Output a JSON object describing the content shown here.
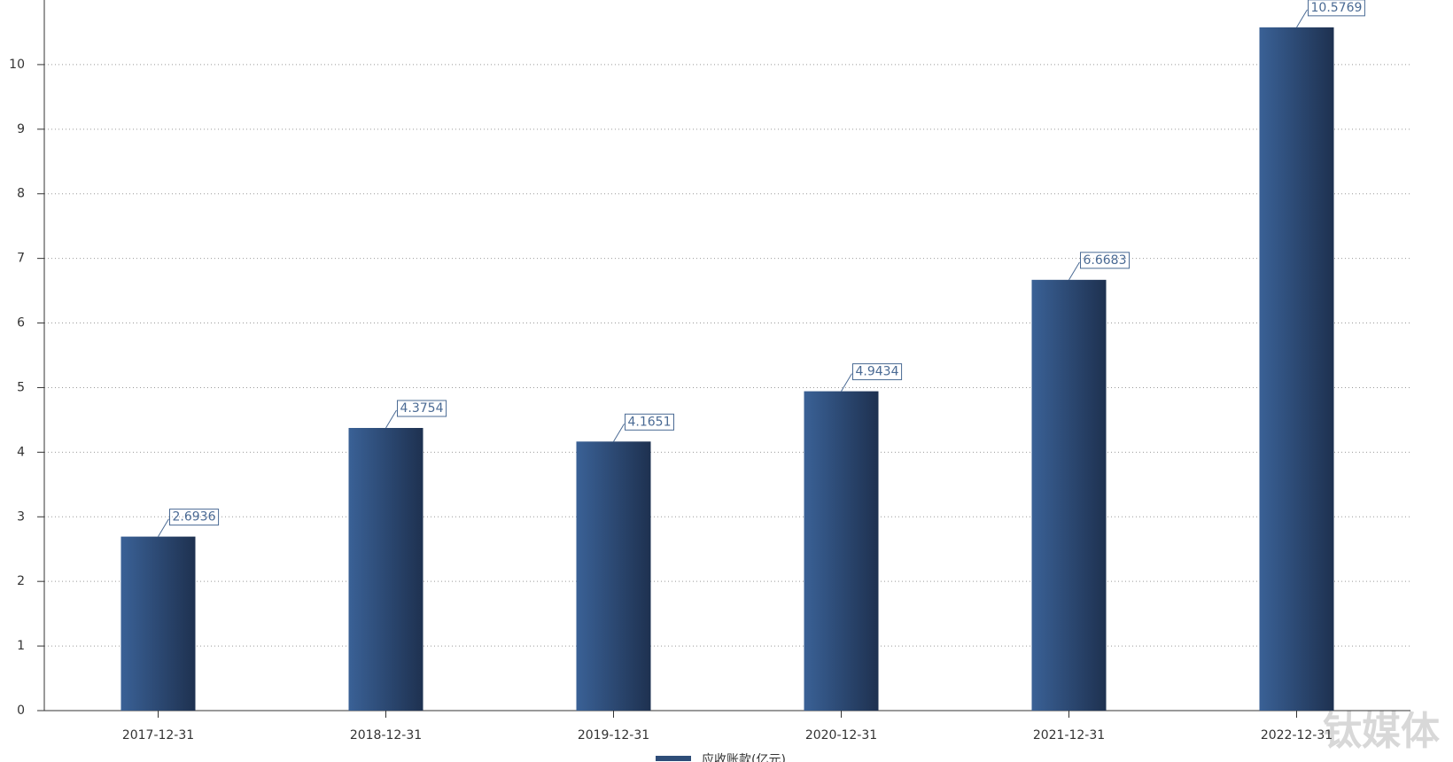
{
  "chart_data": {
    "type": "bar",
    "categories": [
      "2017-12-31",
      "2018-12-31",
      "2019-12-31",
      "2020-12-31",
      "2021-12-31",
      "2022-12-31"
    ],
    "series": [
      {
        "name": "应收账款(亿元)",
        "color": "#2e4d78",
        "values": [
          2.6936,
          4.3754,
          4.1651,
          4.9434,
          6.6683,
          10.5769
        ]
      }
    ],
    "ylim": [
      0,
      11
    ],
    "yticks": [
      0,
      1,
      2,
      3,
      4,
      5,
      6,
      7,
      8,
      9,
      10
    ],
    "grid": true
  },
  "watermark": "钛媒体"
}
